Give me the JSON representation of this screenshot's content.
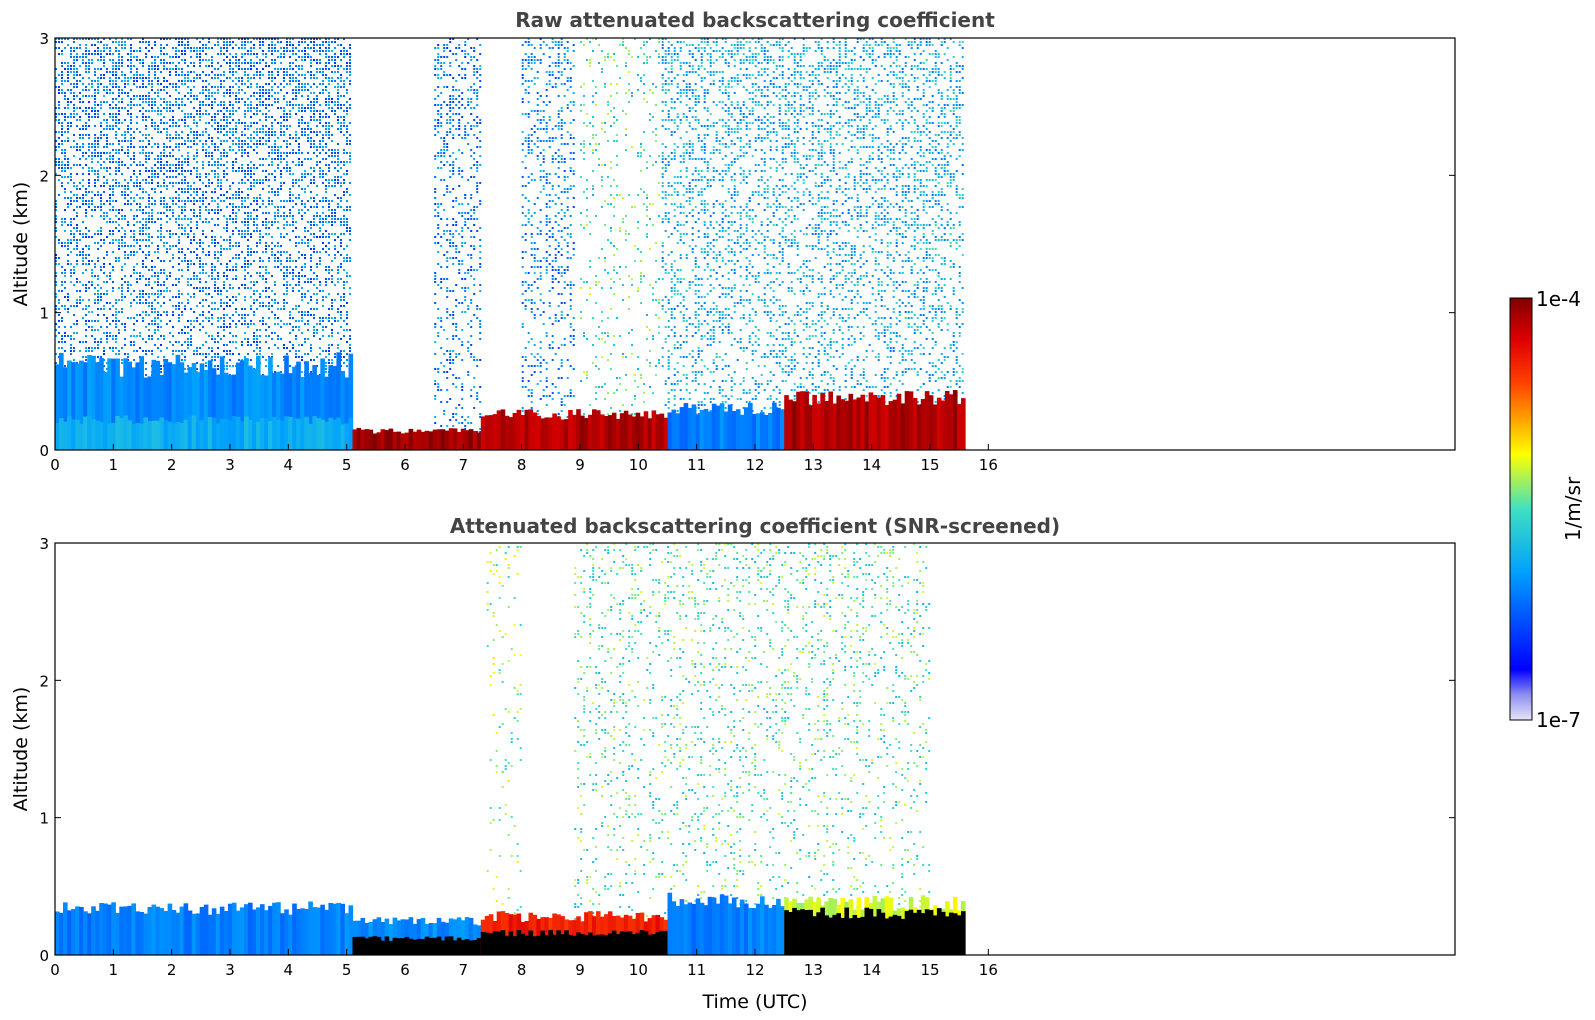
{
  "chart_data": [
    {
      "type": "heatmap",
      "title": "Raw attenuated backscattering coefficient",
      "xlabel": "",
      "ylabel": "Altitude (km)",
      "xlim": [
        0,
        24
      ],
      "ylim": [
        0,
        3
      ],
      "xticks": [
        0,
        1,
        2,
        3,
        4,
        5,
        6,
        7,
        8,
        9,
        10,
        11,
        12,
        13,
        14,
        15,
        16
      ],
      "yticks": [
        0,
        1,
        2,
        3
      ],
      "data_end_time": 15.6,
      "layers": [
        {
          "t0": 0.0,
          "t1": 5.1,
          "top": 0.62,
          "level": 0.32
        },
        {
          "t0": 0.0,
          "t1": 5.1,
          "top": 0.22,
          "level": 0.38
        },
        {
          "t0": 5.1,
          "t1": 7.3,
          "top": 0.14,
          "level": 0.97
        },
        {
          "t0": 7.3,
          "t1": 10.5,
          "top": 0.26,
          "level": 0.95
        },
        {
          "t0": 10.5,
          "t1": 12.5,
          "top": 0.3,
          "level": 0.3
        },
        {
          "t0": 12.5,
          "t1": 15.6,
          "top": 0.38,
          "level": 0.95
        }
      ],
      "noise_regions": [
        {
          "t0": 0.0,
          "t1": 5.1,
          "top": 3.0,
          "level": 0.3,
          "density": 0.55
        },
        {
          "t0": 6.5,
          "t1": 7.3,
          "top": 3.0,
          "level": 0.3,
          "density": 0.35
        },
        {
          "t0": 8.0,
          "t1": 8.9,
          "top": 3.0,
          "level": 0.32,
          "density": 0.35
        },
        {
          "t0": 9.0,
          "t1": 10.4,
          "top": 3.0,
          "level": 0.5,
          "density": 0.15
        },
        {
          "t0": 10.4,
          "t1": 15.6,
          "top": 3.0,
          "level": 0.38,
          "density": 0.4
        }
      ]
    },
    {
      "type": "heatmap",
      "title": "Attenuated backscattering coefficient (SNR-screened)",
      "xlabel": "Time (UTC)",
      "ylabel": "Altitude (km)",
      "xlim": [
        0,
        24
      ],
      "ylim": [
        0,
        3
      ],
      "xticks": [
        0,
        1,
        2,
        3,
        4,
        5,
        6,
        7,
        8,
        9,
        10,
        11,
        12,
        13,
        14,
        15,
        16
      ],
      "yticks": [
        0,
        1,
        2,
        3
      ],
      "data_end_time": 15.6,
      "layers": [
        {
          "t0": 0.0,
          "t1": 5.1,
          "top": 0.34,
          "level": 0.3
        },
        {
          "t0": 5.1,
          "t1": 7.3,
          "top": 0.24,
          "level": 0.32
        },
        {
          "t0": 5.1,
          "t1": 7.3,
          "top": 0.12,
          "level": 1.0
        },
        {
          "t0": 7.3,
          "t1": 10.5,
          "top": 0.28,
          "level": 0.85
        },
        {
          "t0": 7.3,
          "t1": 10.5,
          "top": 0.16,
          "level": 1.0
        },
        {
          "t0": 10.5,
          "t1": 12.5,
          "top": 0.4,
          "level": 0.3
        },
        {
          "t0": 12.5,
          "t1": 15.6,
          "top": 0.38,
          "level": 0.6
        },
        {
          "t0": 12.5,
          "t1": 15.6,
          "top": 0.3,
          "level": 1.0
        }
      ],
      "noise_regions": [
        {
          "t0": 7.4,
          "t1": 8.0,
          "top": 3.0,
          "level": 0.55,
          "density": 0.08
        },
        {
          "t0": 8.9,
          "t1": 15.0,
          "top": 3.0,
          "level": 0.5,
          "density": 0.18
        }
      ]
    }
  ],
  "colorbar": {
    "label": "1/m/sr",
    "min_label": "1e-7",
    "max_label": "1e-4"
  },
  "colors": {
    "axis": "#000000",
    "title": "#444444",
    "saturated": "#000000"
  }
}
